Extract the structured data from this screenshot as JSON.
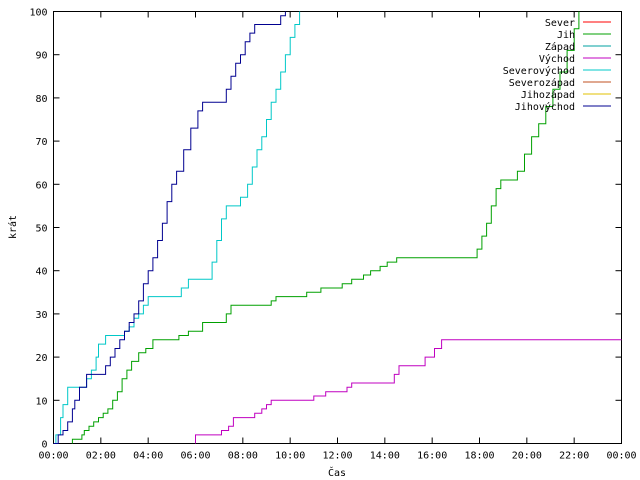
{
  "chart_data": {
    "type": "line",
    "title": "",
    "xlabel": "Čas",
    "ylabel": "krát",
    "ylim": [
      0,
      100
    ],
    "xlim_hours": [
      0,
      24
    ],
    "grid": false,
    "legend_position": "top-right",
    "x_ticks": [
      "00:00",
      "02:00",
      "04:00",
      "06:00",
      "08:00",
      "10:00",
      "12:00",
      "14:00",
      "16:00",
      "18:00",
      "20:00",
      "22:00",
      "00:00"
    ],
    "y_ticks": [
      0,
      10,
      20,
      30,
      40,
      50,
      60,
      70,
      80,
      90,
      100
    ],
    "series": [
      {
        "name": "Sever",
        "color": "#ff0000",
        "points": []
      },
      {
        "name": "Jih",
        "color": "#00a000",
        "points": [
          [
            0.8,
            0
          ],
          [
            0.8,
            1
          ],
          [
            1.1,
            1
          ],
          [
            1.2,
            2
          ],
          [
            1.3,
            3
          ],
          [
            1.5,
            4
          ],
          [
            1.7,
            5
          ],
          [
            1.9,
            6
          ],
          [
            2.1,
            7
          ],
          [
            2.3,
            8
          ],
          [
            2.5,
            10
          ],
          [
            2.7,
            12
          ],
          [
            2.9,
            15
          ],
          [
            3.1,
            17
          ],
          [
            3.3,
            19
          ],
          [
            3.6,
            21
          ],
          [
            3.9,
            22
          ],
          [
            4.2,
            24
          ],
          [
            5.0,
            24
          ],
          [
            5.3,
            25
          ],
          [
            5.7,
            26
          ],
          [
            6.3,
            28
          ],
          [
            7.3,
            30
          ],
          [
            7.5,
            32
          ],
          [
            9.0,
            32
          ],
          [
            9.2,
            33
          ],
          [
            9.4,
            34
          ],
          [
            10.3,
            34
          ],
          [
            10.7,
            35
          ],
          [
            11.3,
            36
          ],
          [
            11.8,
            36
          ],
          [
            12.2,
            37
          ],
          [
            12.6,
            38
          ],
          [
            13.1,
            39
          ],
          [
            13.4,
            40
          ],
          [
            13.8,
            41
          ],
          [
            14.1,
            42
          ],
          [
            14.5,
            43
          ],
          [
            17.8,
            43
          ],
          [
            17.9,
            45
          ],
          [
            18.1,
            48
          ],
          [
            18.3,
            51
          ],
          [
            18.5,
            55
          ],
          [
            18.7,
            59
          ],
          [
            18.9,
            61
          ],
          [
            19.3,
            61
          ],
          [
            19.6,
            63
          ],
          [
            19.9,
            67
          ],
          [
            20.2,
            71
          ],
          [
            20.5,
            74
          ],
          [
            20.8,
            78
          ],
          [
            21.1,
            82
          ],
          [
            21.4,
            86
          ],
          [
            21.7,
            91
          ],
          [
            22.0,
            96
          ],
          [
            22.2,
            100
          ]
        ]
      },
      {
        "name": "Západ",
        "color": "#00a0a0",
        "points": []
      },
      {
        "name": "Východ",
        "color": "#c000c0",
        "points": [
          [
            6.0,
            0
          ],
          [
            6.0,
            2
          ],
          [
            6.8,
            2
          ],
          [
            7.1,
            3
          ],
          [
            7.4,
            4
          ],
          [
            7.6,
            6
          ],
          [
            8.3,
            6
          ],
          [
            8.5,
            7
          ],
          [
            8.8,
            8
          ],
          [
            9.0,
            9
          ],
          [
            9.2,
            10
          ],
          [
            10.6,
            10
          ],
          [
            11.0,
            11
          ],
          [
            11.5,
            12
          ],
          [
            11.9,
            12
          ],
          [
            12.4,
            13
          ],
          [
            12.6,
            14
          ],
          [
            14.2,
            14
          ],
          [
            14.4,
            16
          ],
          [
            14.6,
            18
          ],
          [
            15.4,
            18
          ],
          [
            15.7,
            20
          ],
          [
            16.1,
            22
          ],
          [
            16.4,
            24
          ],
          [
            24,
            24
          ]
        ]
      },
      {
        "name": "Severovýchod",
        "color": "#00c8c8",
        "points": [
          [
            0,
            0
          ],
          [
            0.1,
            2
          ],
          [
            0.3,
            6
          ],
          [
            0.4,
            9
          ],
          [
            0.6,
            13
          ],
          [
            1.2,
            13
          ],
          [
            1.4,
            15
          ],
          [
            1.6,
            17
          ],
          [
            1.8,
            20
          ],
          [
            1.9,
            23
          ],
          [
            2.2,
            25
          ],
          [
            2.9,
            25
          ],
          [
            3.0,
            26
          ],
          [
            3.2,
            27
          ],
          [
            3.4,
            29
          ],
          [
            3.6,
            30
          ],
          [
            3.8,
            32
          ],
          [
            4.0,
            34
          ],
          [
            5.2,
            34
          ],
          [
            5.4,
            36
          ],
          [
            5.7,
            38
          ],
          [
            6.5,
            38
          ],
          [
            6.7,
            42
          ],
          [
            6.9,
            47
          ],
          [
            7.1,
            52
          ],
          [
            7.3,
            55
          ],
          [
            7.6,
            55
          ],
          [
            7.9,
            57
          ],
          [
            8.2,
            60
          ],
          [
            8.4,
            64
          ],
          [
            8.6,
            68
          ],
          [
            8.8,
            71
          ],
          [
            9.0,
            75
          ],
          [
            9.2,
            79
          ],
          [
            9.4,
            82
          ],
          [
            9.6,
            86
          ],
          [
            9.8,
            90
          ],
          [
            10.0,
            94
          ],
          [
            10.2,
            97
          ],
          [
            10.4,
            100
          ]
        ]
      },
      {
        "name": "Severozápad",
        "color": "#c05020",
        "points": []
      },
      {
        "name": "Jihozápad",
        "color": "#e0c000",
        "points": []
      },
      {
        "name": "Jihovýchod",
        "color": "#000090",
        "points": [
          [
            0,
            0
          ],
          [
            0.2,
            2
          ],
          [
            0.4,
            3
          ],
          [
            0.6,
            5
          ],
          [
            0.8,
            8
          ],
          [
            0.9,
            10
          ],
          [
            1.1,
            13
          ],
          [
            1.4,
            16
          ],
          [
            2.0,
            16
          ],
          [
            2.2,
            18
          ],
          [
            2.4,
            20
          ],
          [
            2.6,
            22
          ],
          [
            2.8,
            24
          ],
          [
            3.0,
            26
          ],
          [
            3.2,
            28
          ],
          [
            3.4,
            30
          ],
          [
            3.6,
            33
          ],
          [
            3.8,
            37
          ],
          [
            4.0,
            40
          ],
          [
            4.2,
            43
          ],
          [
            4.4,
            47
          ],
          [
            4.6,
            51
          ],
          [
            4.8,
            56
          ],
          [
            5.0,
            60
          ],
          [
            5.2,
            63
          ],
          [
            5.5,
            68
          ],
          [
            5.8,
            73
          ],
          [
            6.1,
            77
          ],
          [
            6.3,
            79
          ],
          [
            7.1,
            79
          ],
          [
            7.3,
            82
          ],
          [
            7.5,
            85
          ],
          [
            7.7,
            88
          ],
          [
            7.9,
            90
          ],
          [
            8.1,
            93
          ],
          [
            8.3,
            95
          ],
          [
            8.5,
            97
          ],
          [
            9.4,
            97
          ],
          [
            9.6,
            99
          ],
          [
            9.8,
            100
          ]
        ]
      }
    ]
  }
}
